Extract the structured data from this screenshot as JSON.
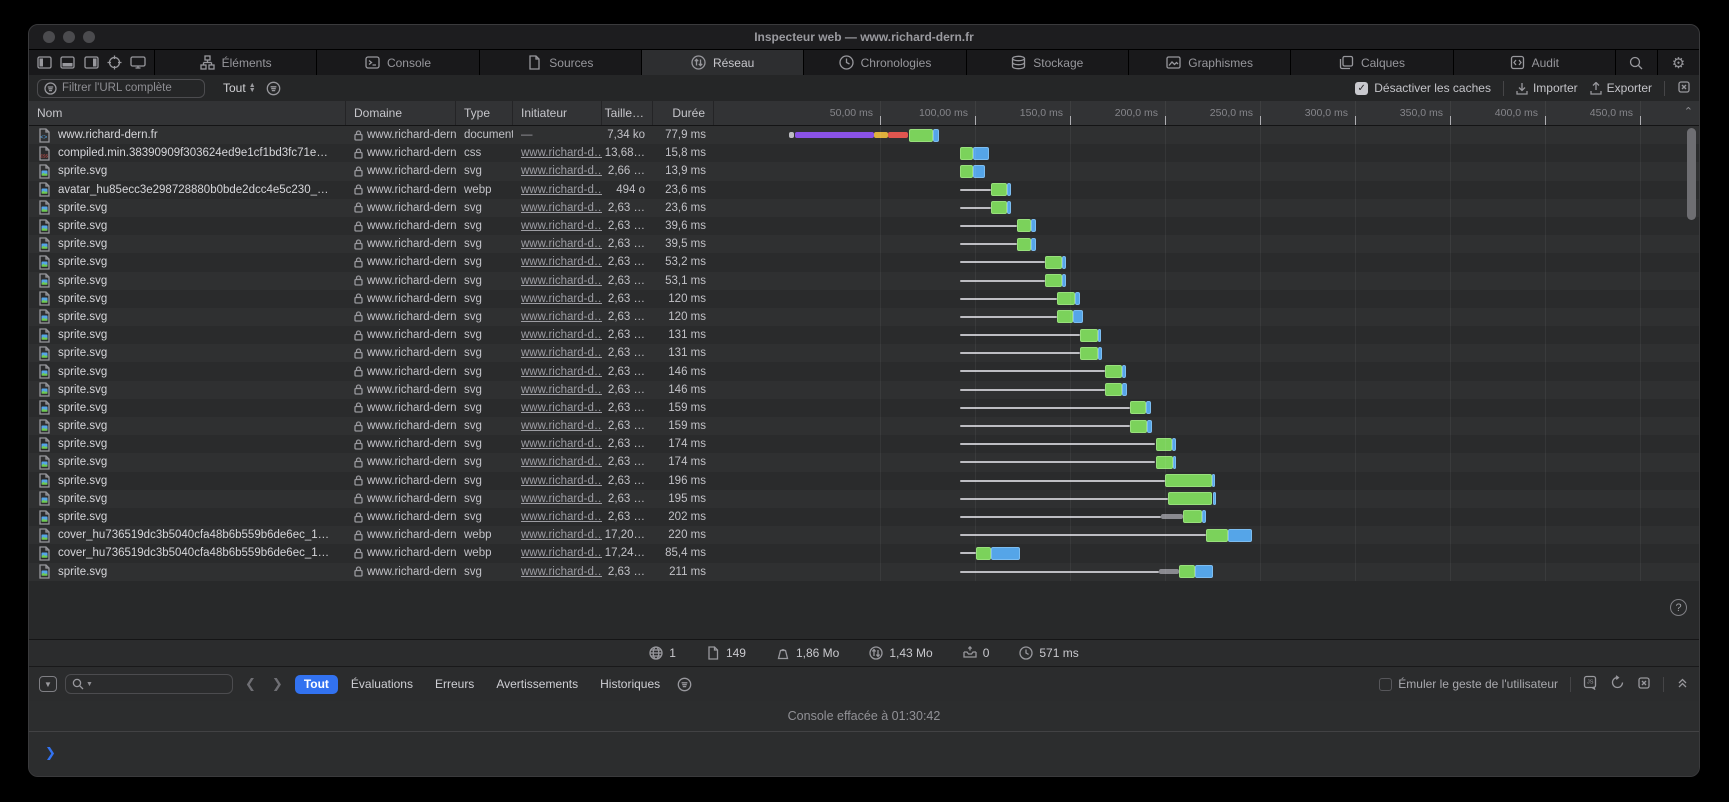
{
  "window": {
    "title": "Inspecteur web — www.richard-dern.fr"
  },
  "main_tabs": {
    "active": "Réseau",
    "items": [
      {
        "label": "Éléments",
        "icon": "elements-icon"
      },
      {
        "label": "Console",
        "icon": "console-icon"
      },
      {
        "label": "Sources",
        "icon": "sources-icon"
      },
      {
        "label": "Réseau",
        "icon": "network-icon"
      },
      {
        "label": "Chronologies",
        "icon": "timelines-icon"
      },
      {
        "label": "Stockage",
        "icon": "storage-icon"
      },
      {
        "label": "Graphismes",
        "icon": "graphics-icon"
      },
      {
        "label": "Calques",
        "icon": "layers-icon"
      },
      {
        "label": "Audit",
        "icon": "audit-icon"
      }
    ]
  },
  "filter_bar": {
    "url_filter_placeholder": "Filtrer l'URL complète",
    "scope_selected": "Tout",
    "disable_caches": {
      "label": "Désactiver les caches",
      "checked": true
    },
    "import_label": "Importer",
    "export_label": "Exporter"
  },
  "network_table": {
    "columns": [
      "Nom",
      "Domaine",
      "Type",
      "Initiateur",
      "Taille…",
      "Durée"
    ],
    "timeline_ticks": [
      "50,00 ms",
      "100,00 ms",
      "150,0 ms",
      "200,0 ms",
      "250,0 ms",
      "300,0 ms",
      "350,0 ms",
      "400,0 ms",
      "450,0 ms"
    ],
    "rows": [
      {
        "name": "www.richard-dern.fr",
        "icon": "doc-code",
        "domain": "www.richard-dern.fr",
        "type": "document",
        "initiator": "—",
        "initiator_link": false,
        "size": "7,34 ko",
        "duration": "77,9 ms",
        "wf": {
          "line": null,
          "dark": null,
          "segs": [
            [
              "gray",
              2,
              5
            ],
            [
              "purple",
              5,
              47
            ],
            [
              "yellow",
              47,
              54
            ],
            [
              "red",
              54,
              65
            ],
            [
              "green",
              65,
              78
            ],
            [
              "blue",
              78,
              81
            ]
          ]
        }
      },
      {
        "name": "compiled.min.38390909f303624ed9e1cf1bd3fc71e…",
        "icon": "doc-css",
        "domain": "www.richard-dern.fr",
        "type": "css",
        "initiator": "www.richard-d…",
        "initiator_link": true,
        "size": "13,68…",
        "duration": "15,8 ms",
        "wf": {
          "line": null,
          "dark": null,
          "segs": [
            [
              "green",
              92,
              99
            ],
            [
              "blue",
              99,
              107.5
            ]
          ]
        }
      },
      {
        "name": "sprite.svg",
        "icon": "doc-img",
        "domain": "www.richard-dern.fr",
        "type": "svg",
        "initiator": "www.richard-d…",
        "initiator_link": true,
        "size": "2,66 …",
        "duration": "13,9 ms",
        "wf": {
          "line": null,
          "dark": null,
          "segs": [
            [
              "green",
              92,
              99
            ],
            [
              "blue",
              99,
              105.5
            ]
          ]
        }
      },
      {
        "name": "avatar_hu85ecc3e298728880b0bde2dcc4e5c230_…",
        "icon": "doc-img",
        "domain": "www.richard-dern.fr",
        "type": "webp",
        "initiator": "www.richard-d…",
        "initiator_link": true,
        "size": "494 o",
        "duration": "23,6 ms",
        "wf": {
          "line": [
            92,
            108.5
          ],
          "dark": null,
          "segs": [
            [
              "green",
              108.5,
              117
            ],
            [
              "blue",
              117,
              119
            ]
          ]
        }
      },
      {
        "name": "sprite.svg",
        "icon": "doc-img",
        "domain": "www.richard-dern.fr",
        "type": "svg",
        "initiator": "www.richard-d…",
        "initiator_link": true,
        "size": "2,63 …",
        "duration": "23,6 ms",
        "wf": {
          "line": [
            92,
            108.5
          ],
          "dark": null,
          "segs": [
            [
              "green",
              108.5,
              117
            ],
            [
              "blue",
              117,
              119
            ]
          ]
        }
      },
      {
        "name": "sprite.svg",
        "icon": "doc-img",
        "domain": "www.richard-dern.fr",
        "type": "svg",
        "initiator": "www.richard-d…",
        "initiator_link": true,
        "size": "2,63 …",
        "duration": "39,6 ms",
        "wf": {
          "line": [
            92,
            122
          ],
          "dark": null,
          "segs": [
            [
              "green",
              122,
              129.5
            ],
            [
              "blue",
              129.5,
              132
            ]
          ]
        }
      },
      {
        "name": "sprite.svg",
        "icon": "doc-img",
        "domain": "www.richard-dern.fr",
        "type": "svg",
        "initiator": "www.richard-d…",
        "initiator_link": true,
        "size": "2,63 …",
        "duration": "39,5 ms",
        "wf": {
          "line": [
            92,
            122
          ],
          "dark": null,
          "segs": [
            [
              "green",
              122,
              129.5
            ],
            [
              "blue",
              129.5,
              132
            ]
          ]
        }
      },
      {
        "name": "sprite.svg",
        "icon": "doc-img",
        "domain": "www.richard-dern.fr",
        "type": "svg",
        "initiator": "www.richard-d…",
        "initiator_link": true,
        "size": "2,63 …",
        "duration": "53,2 ms",
        "wf": {
          "line": [
            92,
            137
          ],
          "dark": null,
          "segs": [
            [
              "green",
              137,
              146
            ],
            [
              "blue",
              146,
              148
            ]
          ]
        }
      },
      {
        "name": "sprite.svg",
        "icon": "doc-img",
        "domain": "www.richard-dern.fr",
        "type": "svg",
        "initiator": "www.richard-d…",
        "initiator_link": true,
        "size": "2,63 …",
        "duration": "53,1 ms",
        "wf": {
          "line": [
            92,
            137
          ],
          "dark": null,
          "segs": [
            [
              "green",
              137,
              146
            ],
            [
              "blue",
              146,
              148
            ]
          ]
        }
      },
      {
        "name": "sprite.svg",
        "icon": "doc-img",
        "domain": "www.richard-dern.fr",
        "type": "svg",
        "initiator": "www.richard-d…",
        "initiator_link": true,
        "size": "2,63 …",
        "duration": "120 ms",
        "wf": {
          "line": [
            92,
            143
          ],
          "dark": null,
          "segs": [
            [
              "green",
              143,
              152.5
            ],
            [
              "blue",
              152.5,
              155
            ]
          ]
        }
      },
      {
        "name": "sprite.svg",
        "icon": "doc-img",
        "domain": "www.richard-dern.fr",
        "type": "svg",
        "initiator": "www.richard-d…",
        "initiator_link": true,
        "size": "2,63 …",
        "duration": "120 ms",
        "wf": {
          "line": [
            92,
            143
          ],
          "dark": null,
          "segs": [
            [
              "green",
              143,
              151.5
            ],
            [
              "blue",
              151.5,
              157
            ]
          ]
        }
      },
      {
        "name": "sprite.svg",
        "icon": "doc-img",
        "domain": "www.richard-dern.fr",
        "type": "svg",
        "initiator": "www.richard-d…",
        "initiator_link": true,
        "size": "2,63 …",
        "duration": "131 ms",
        "wf": {
          "line": [
            92,
            155.5
          ],
          "dark": null,
          "segs": [
            [
              "green",
              155.5,
              164.5
            ],
            [
              "blue",
              164.5,
              166.5
            ]
          ]
        }
      },
      {
        "name": "sprite.svg",
        "icon": "doc-img",
        "domain": "www.richard-dern.fr",
        "type": "svg",
        "initiator": "www.richard-d…",
        "initiator_link": true,
        "size": "2,63 …",
        "duration": "131 ms",
        "wf": {
          "line": [
            92,
            155.5
          ],
          "dark": null,
          "segs": [
            [
              "green",
              155.5,
              164.5
            ],
            [
              "blue",
              164.5,
              167
            ]
          ]
        }
      },
      {
        "name": "sprite.svg",
        "icon": "doc-img",
        "domain": "www.richard-dern.fr",
        "type": "svg",
        "initiator": "www.richard-d…",
        "initiator_link": true,
        "size": "2,63 …",
        "duration": "146 ms",
        "wf": {
          "line": [
            92,
            168.5
          ],
          "dark": null,
          "segs": [
            [
              "green",
              168.5,
              177.5
            ],
            [
              "blue",
              177.5,
              179.5
            ]
          ]
        }
      },
      {
        "name": "sprite.svg",
        "icon": "doc-img",
        "domain": "www.richard-dern.fr",
        "type": "svg",
        "initiator": "www.richard-d…",
        "initiator_link": true,
        "size": "2,63 …",
        "duration": "146 ms",
        "wf": {
          "line": [
            92,
            168.5
          ],
          "dark": null,
          "segs": [
            [
              "green",
              168.5,
              177.5
            ],
            [
              "blue",
              177.5,
              180
            ]
          ]
        }
      },
      {
        "name": "sprite.svg",
        "icon": "doc-img",
        "domain": "www.richard-dern.fr",
        "type": "svg",
        "initiator": "www.richard-d…",
        "initiator_link": true,
        "size": "2,63 …",
        "duration": "159 ms",
        "wf": {
          "line": [
            92,
            181.5
          ],
          "dark": null,
          "segs": [
            [
              "green",
              181.5,
              190
            ],
            [
              "blue",
              190,
              192.5
            ]
          ]
        }
      },
      {
        "name": "sprite.svg",
        "icon": "doc-img",
        "domain": "www.richard-dern.fr",
        "type": "svg",
        "initiator": "www.richard-d…",
        "initiator_link": true,
        "size": "2,63 …",
        "duration": "159 ms",
        "wf": {
          "line": [
            92,
            181.5
          ],
          "dark": null,
          "segs": [
            [
              "green",
              181.5,
              190.5
            ],
            [
              "blue",
              190.5,
              193
            ]
          ]
        }
      },
      {
        "name": "sprite.svg",
        "icon": "doc-img",
        "domain": "www.richard-dern.fr",
        "type": "svg",
        "initiator": "www.richard-d…",
        "initiator_link": true,
        "size": "2,63 …",
        "duration": "174 ms",
        "wf": {
          "line": [
            92,
            195
          ],
          "dark": null,
          "segs": [
            [
              "green",
              195,
              203.5
            ],
            [
              "blue",
              203.5,
              206
            ]
          ]
        }
      },
      {
        "name": "sprite.svg",
        "icon": "doc-img",
        "domain": "www.richard-dern.fr",
        "type": "svg",
        "initiator": "www.richard-d…",
        "initiator_link": true,
        "size": "2,63 …",
        "duration": "174 ms",
        "wf": {
          "line": [
            92,
            195
          ],
          "dark": null,
          "segs": [
            [
              "green",
              195,
              204
            ],
            [
              "blue",
              204,
              206
            ]
          ]
        }
      },
      {
        "name": "sprite.svg",
        "icon": "doc-img",
        "domain": "www.richard-dern.fr",
        "type": "svg",
        "initiator": "www.richard-d…",
        "initiator_link": true,
        "size": "2,63 …",
        "duration": "196 ms",
        "wf": {
          "line": [
            92,
            200
          ],
          "dark": null,
          "segs": [
            [
              "green",
              200,
              224.5
            ],
            [
              "blue",
              224.5,
              226.5
            ]
          ]
        }
      },
      {
        "name": "sprite.svg",
        "icon": "doc-img",
        "domain": "www.richard-dern.fr",
        "type": "svg",
        "initiator": "www.richard-d…",
        "initiator_link": true,
        "size": "2,63 …",
        "duration": "195 ms",
        "wf": {
          "line": [
            92,
            201.5
          ],
          "dark": null,
          "segs": [
            [
              "green",
              201.5,
              225
            ],
            [
              "blue",
              225,
              227
            ]
          ]
        }
      },
      {
        "name": "sprite.svg",
        "icon": "doc-img",
        "domain": "www.richard-dern.fr",
        "type": "svg",
        "initiator": "www.richard-d…",
        "initiator_link": true,
        "size": "2,63 …",
        "duration": "202 ms",
        "wf": {
          "line": [
            92,
            198
          ],
          "dark": [
            198,
            209.5
          ],
          "segs": [
            [
              "green",
              209.5,
              219.5
            ],
            [
              "blue",
              219.5,
              221.5
            ]
          ]
        }
      },
      {
        "name": "cover_hu736519dc3b5040cfa48b6b559b6de6ec_1…",
        "icon": "doc-img",
        "domain": "www.richard-dern.fr",
        "type": "webp",
        "initiator": "www.richard-d…",
        "initiator_link": true,
        "size": "17,20…",
        "duration": "220 ms",
        "wf": {
          "line": [
            92,
            221.5
          ],
          "dark": null,
          "segs": [
            [
              "green",
              221.5,
              233
            ],
            [
              "blue",
              233,
              246
            ]
          ]
        }
      },
      {
        "name": "cover_hu736519dc3b5040cfa48b6b559b6de6ec_1…",
        "icon": "doc-img",
        "domain": "www.richard-dern.fr",
        "type": "webp",
        "initiator": "www.richard-d…",
        "initiator_link": true,
        "size": "17,24…",
        "duration": "85,4 ms",
        "wf": {
          "line": [
            92,
            100.5
          ],
          "dark": null,
          "segs": [
            [
              "green",
              100.5,
              108.5
            ],
            [
              "blue",
              108.5,
              123.5
            ]
          ]
        }
      },
      {
        "name": "sprite.svg",
        "icon": "doc-img",
        "domain": "www.richard-dern.fr",
        "type": "svg",
        "initiator": "www.richard-d…",
        "initiator_link": true,
        "size": "2,63 …",
        "duration": "211 ms",
        "wf": {
          "line": [
            92,
            197
          ],
          "dark": [
            197,
            207.5
          ],
          "segs": [
            [
              "green",
              207.5,
              216
            ],
            [
              "blue",
              216,
              225.5
            ]
          ]
        }
      }
    ]
  },
  "status_bar": {
    "items": [
      {
        "icon": "globe-icon",
        "value": "1"
      },
      {
        "icon": "document-count-icon",
        "value": "149"
      },
      {
        "icon": "resource-size-icon",
        "value": "1,86 Mo"
      },
      {
        "icon": "transfer-size-icon",
        "value": "1,43 Mo"
      },
      {
        "icon": "cache-icon",
        "value": "0"
      },
      {
        "icon": "duration-icon",
        "value": "571 ms"
      }
    ],
    "help_label": "?"
  },
  "console_bar": {
    "filters": [
      "Tout",
      "Évaluations",
      "Erreurs",
      "Avertissements",
      "Historiques"
    ],
    "active_filter": "Tout",
    "emulate_gesture_label": "Émuler le geste de l'utilisateur",
    "emulate_checked": false
  },
  "console": {
    "cleared_message": "Console effacée à 01:30:42",
    "prompt_symbol": "❯"
  },
  "colors": {
    "accent_blue": "#3272f0",
    "wf_green": "#7bd25b",
    "wf_green_border": "#98e07c",
    "wf_blue": "#55a5e8",
    "wf_blue_border": "#7dbdf0",
    "wf_purple": "#8a52e6",
    "wf_yellow": "#dfb03c",
    "wf_red": "#e0564f",
    "wf_gray": "#bdbdc2",
    "wf_darkgray": "#8a8a90"
  }
}
